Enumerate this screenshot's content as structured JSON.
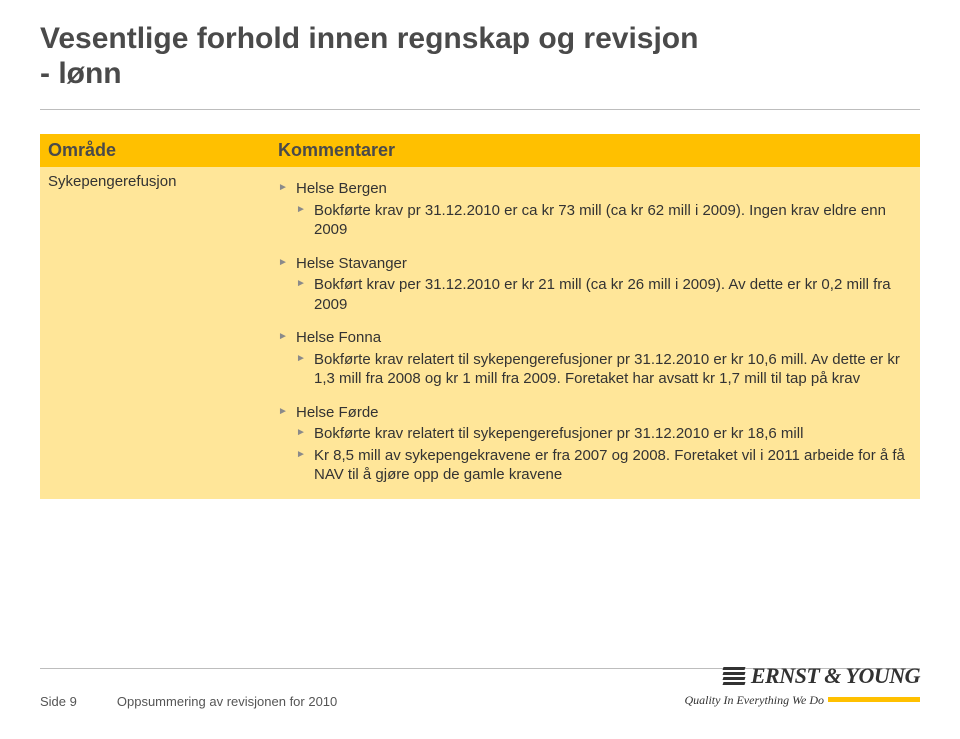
{
  "colors": {
    "header_bg": "#ffc000",
    "body_bg": "#ffe699",
    "title_text": "#4a4a4a",
    "rule": "#bdbdbd",
    "bullet": "#8a8a8a",
    "text": "#333333",
    "ey_dark": "#323232"
  },
  "title_line1": "Vesentlige forhold innen regnskap og revisjon",
  "title_line2": "- lønn",
  "table": {
    "head_left": "Område",
    "head_right": "Kommentarer",
    "row_label": "Sykepengerefusjon",
    "groups": [
      {
        "header": "Helse Bergen",
        "items": [
          "Bokførte krav pr 31.12.2010 er ca kr 73 mill (ca kr 62 mill i 2009). Ingen krav eldre enn 2009"
        ]
      },
      {
        "header": "Helse Stavanger",
        "items": [
          "Bokført krav per 31.12.2010 er kr 21 mill (ca kr 26 mill i 2009). Av dette er kr 0,2 mill fra 2009"
        ]
      },
      {
        "header": "Helse Fonna",
        "items": [
          "Bokførte krav relatert til sykepengerefusjoner pr 31.12.2010 er kr 10,6 mill. Av dette er kr 1,3 mill fra 2008 og kr 1 mill fra 2009. Foretaket har avsatt kr 1,7 mill til tap på krav"
        ]
      },
      {
        "header": "Helse Førde",
        "items": [
          "Bokførte krav relatert til sykepengerefusjoner pr 31.12.2010 er kr 18,6 mill",
          "Kr 8,5 mill av sykepengekravene er fra 2007 og 2008. Foretaket vil i 2011 arbeide for å få NAV til å gjøre opp de gamle kravene"
        ]
      }
    ]
  },
  "footer": {
    "page_label": "Side 9",
    "doc_label": "Oppsummering av revisjonen for 2010",
    "ey_name": "ERNST & YOUNG",
    "ey_tag": "Quality In Everything We Do"
  }
}
